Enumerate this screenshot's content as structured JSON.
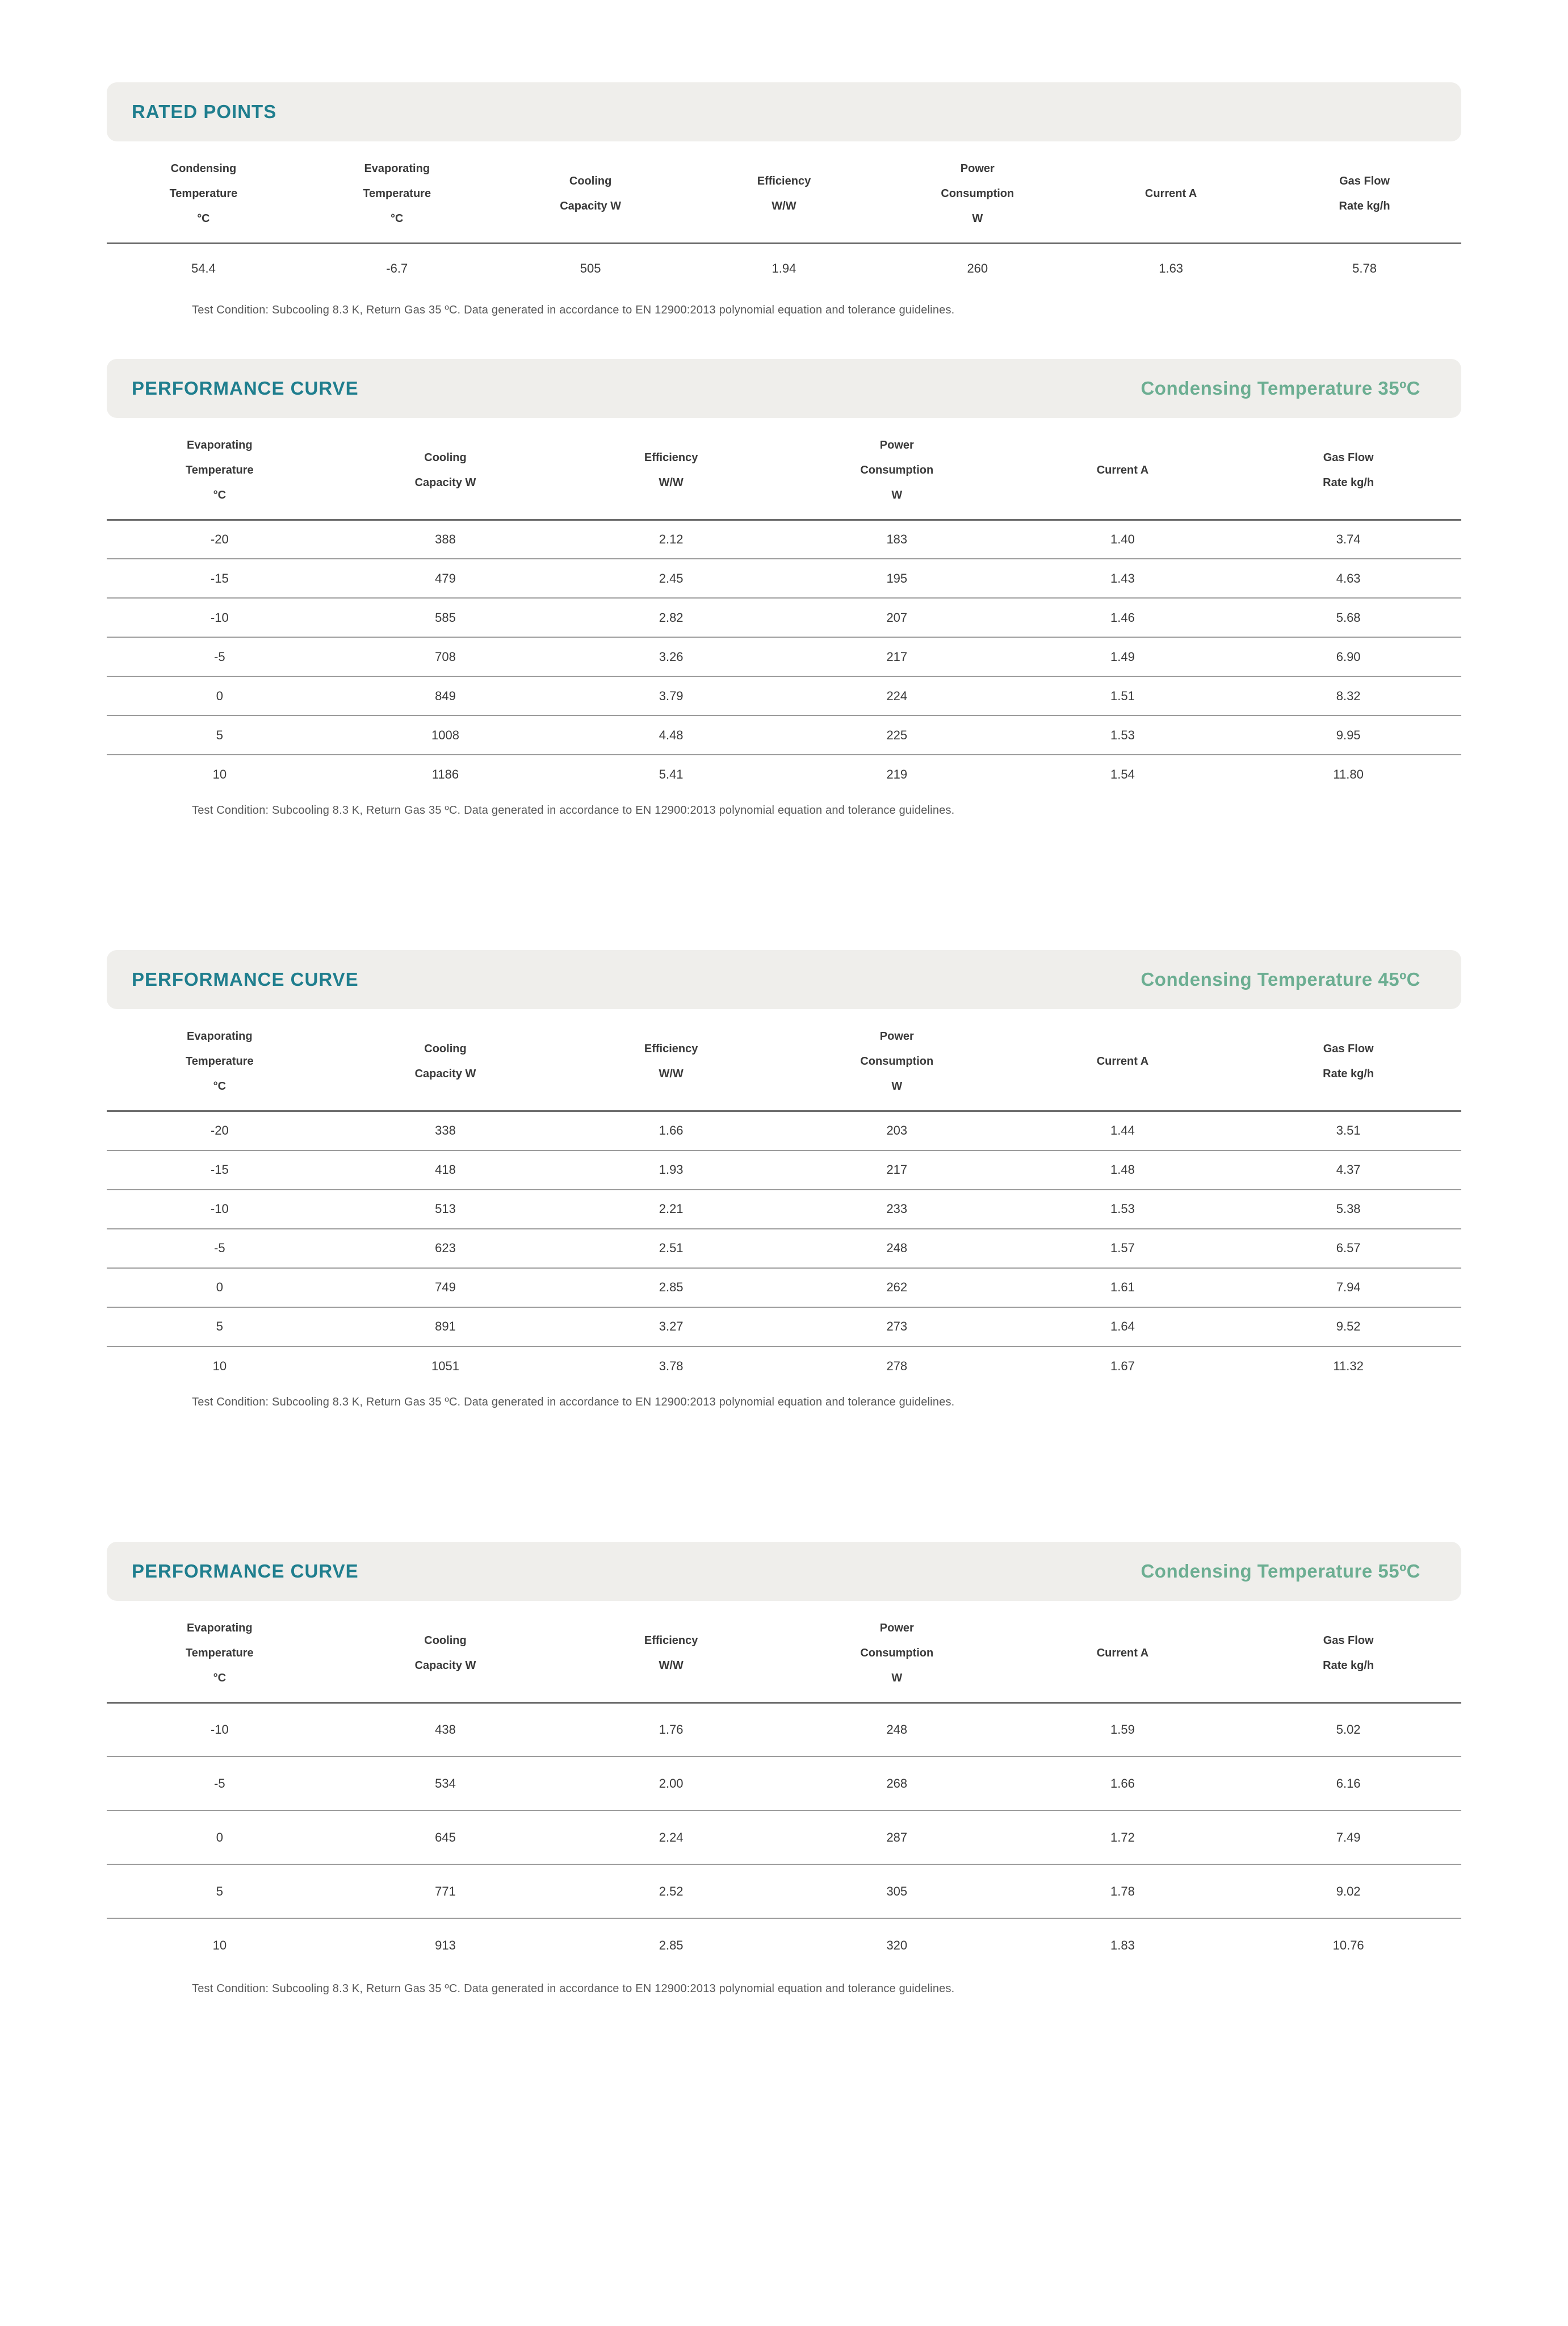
{
  "colors": {
    "accent_teal": "#1f7e8e",
    "accent_green": "#6cae92",
    "band_background": "#efeeeb",
    "header_rule": "#6d6d6d",
    "row_rule": "#9d9d9d",
    "body_text": "#3a3a3a",
    "note_text": "#595959"
  },
  "rated_points": {
    "title": "RATED POINTS",
    "columns": [
      "Condensing\nTemperature\n°C",
      "Evaporating\nTemperature\n°C",
      "Cooling\nCapacity W",
      "Efficiency\nW/W",
      "Power\nConsumption\nW",
      "Current A",
      "Gas Flow\nRate kg/h"
    ],
    "rows": [
      [
        "54.4",
        "-6.7",
        "505",
        "1.94",
        "260",
        "1.63",
        "5.78"
      ]
    ],
    "note": "Test Condition: Subcooling 8.3 K, Return Gas 35 ºC. Data generated in accordance to EN 12900:2013 polynomial equation and tolerance guidelines."
  },
  "performance_curves": [
    {
      "title": "PERFORMANCE CURVE",
      "subtitle": "Condensing Temperature 35ºC",
      "columns": [
        "Evaporating\nTemperature\n°C",
        "Cooling\nCapacity W",
        "Efficiency\nW/W",
        "Power\nConsumption\nW",
        "Current A",
        "Gas Flow\nRate kg/h"
      ],
      "rows": [
        [
          "-20",
          "388",
          "2.12",
          "183",
          "1.40",
          "3.74"
        ],
        [
          "-15",
          "479",
          "2.45",
          "195",
          "1.43",
          "4.63"
        ],
        [
          "-10",
          "585",
          "2.82",
          "207",
          "1.46",
          "5.68"
        ],
        [
          "-5",
          "708",
          "3.26",
          "217",
          "1.49",
          "6.90"
        ],
        [
          "0",
          "849",
          "3.79",
          "224",
          "1.51",
          "8.32"
        ],
        [
          "5",
          "1008",
          "4.48",
          "225",
          "1.53",
          "9.95"
        ],
        [
          "10",
          "1186",
          "5.41",
          "219",
          "1.54",
          "11.80"
        ]
      ],
      "note": "Test Condition: Subcooling 8.3 K, Return Gas 35 ºC. Data generated in accordance to EN 12900:2013 polynomial equation and tolerance guidelines."
    },
    {
      "title": "PERFORMANCE CURVE",
      "subtitle": "Condensing Temperature 45ºC",
      "columns": [
        "Evaporating\nTemperature\n°C",
        "Cooling\nCapacity W",
        "Efficiency\nW/W",
        "Power\nConsumption\nW",
        "Current A",
        "Gas Flow\nRate kg/h"
      ],
      "rows": [
        [
          "-20",
          "338",
          "1.66",
          "203",
          "1.44",
          "3.51"
        ],
        [
          "-15",
          "418",
          "1.93",
          "217",
          "1.48",
          "4.37"
        ],
        [
          "-10",
          "513",
          "2.21",
          "233",
          "1.53",
          "5.38"
        ],
        [
          "-5",
          "623",
          "2.51",
          "248",
          "1.57",
          "6.57"
        ],
        [
          "0",
          "749",
          "2.85",
          "262",
          "1.61",
          "7.94"
        ],
        [
          "5",
          "891",
          "3.27",
          "273",
          "1.64",
          "9.52"
        ],
        [
          "10",
          "1051",
          "3.78",
          "278",
          "1.67",
          "11.32"
        ]
      ],
      "note": "Test Condition: Subcooling 8.3 K, Return Gas 35 ºC. Data generated in accordance to EN 12900:2013 polynomial equation and tolerance guidelines."
    },
    {
      "title": "PERFORMANCE CURVE",
      "subtitle": "Condensing Temperature 55ºC",
      "columns": [
        "Evaporating\nTemperature\n°C",
        "Cooling\nCapacity W",
        "Efficiency\nW/W",
        "Power\nConsumption\nW",
        "Current A",
        "Gas Flow\nRate kg/h"
      ],
      "rows": [
        [
          "-10",
          "438",
          "1.76",
          "248",
          "1.59",
          "5.02"
        ],
        [
          "-5",
          "534",
          "2.00",
          "268",
          "1.66",
          "6.16"
        ],
        [
          "0",
          "645",
          "2.24",
          "287",
          "1.72",
          "7.49"
        ],
        [
          "5",
          "771",
          "2.52",
          "305",
          "1.78",
          "9.02"
        ],
        [
          "10",
          "913",
          "2.85",
          "320",
          "1.83",
          "10.76"
        ]
      ],
      "note": "Test Condition: Subcooling 8.3 K, Return Gas 35 ºC. Data generated in accordance to EN 12900:2013 polynomial equation and tolerance guidelines."
    }
  ]
}
